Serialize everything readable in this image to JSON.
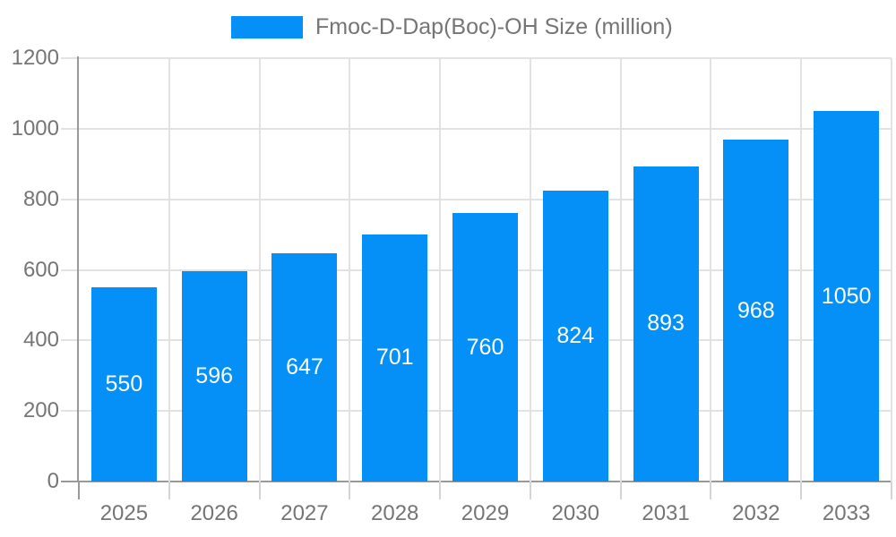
{
  "chart_data": {
    "type": "bar",
    "title": "Fmoc-D-Dap(Boc)-OH Size (million)",
    "legend": "Fmoc-D-Dap(Boc)-OH Size (million)",
    "legend_position": "top",
    "categories": [
      "2025",
      "2026",
      "2027",
      "2028",
      "2029",
      "2030",
      "2031",
      "2032",
      "2033"
    ],
    "values": [
      550,
      596,
      647,
      701,
      760,
      824,
      893,
      968,
      1050
    ],
    "value_labels": [
      "550",
      "596",
      "647",
      "701",
      "760",
      "824",
      "893",
      "968",
      "1050"
    ],
    "xlabel": "",
    "ylabel": "",
    "ylim": [
      0,
      1200
    ],
    "yticks": [
      0,
      200,
      400,
      600,
      800,
      1000,
      1200
    ],
    "grid": true,
    "colors": {
      "bar": "#0590f8",
      "grid_line": "#e2e2e2",
      "tick_line": "#d4d4d4",
      "axis_line": "#999999",
      "axis_label": "#757575",
      "legend_text": "#757575",
      "value_label": "#ffffff",
      "background": "#ffffff"
    }
  }
}
